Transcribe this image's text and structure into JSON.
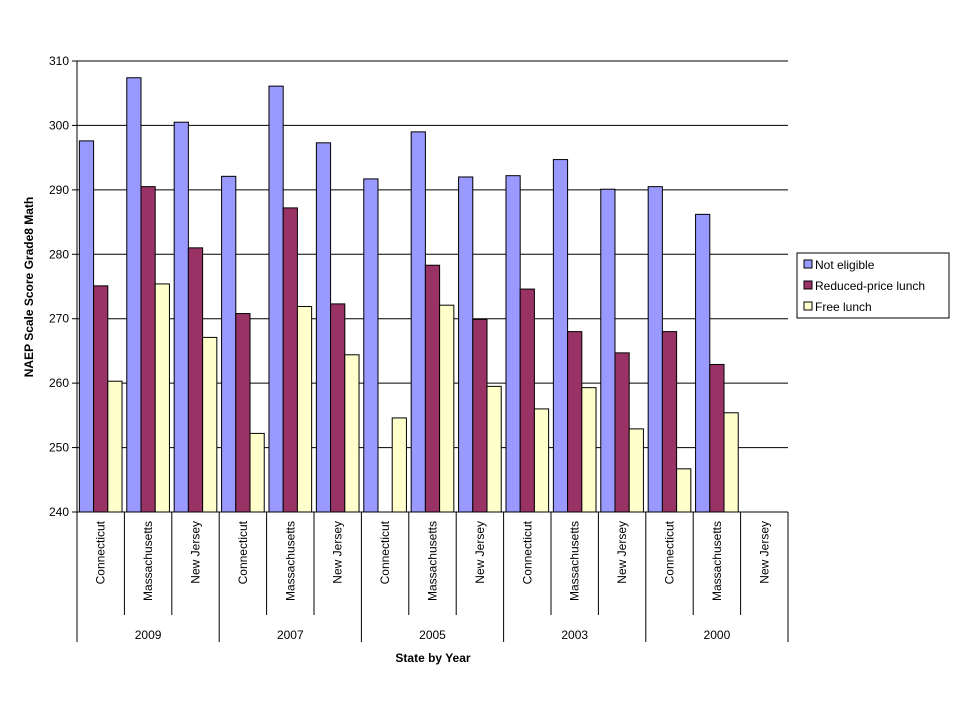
{
  "chart_data": {
    "type": "bar",
    "title": "",
    "xlabel": "State by Year",
    "ylabel": "NAEP Scale Score Grade8 Math",
    "ylim": [
      240,
      310
    ],
    "yticks": [
      240,
      250,
      260,
      270,
      280,
      290,
      300,
      310
    ],
    "grid": true,
    "legend_position": "right",
    "groups": [
      "2009",
      "2007",
      "2005",
      "2003",
      "2000"
    ],
    "categories": [
      "Connecticut",
      "Massachusetts",
      "New Jersey",
      "Connecticut",
      "Massachusetts",
      "New Jersey",
      "Connecticut",
      "Massachusetts",
      "New Jersey",
      "Connecticut",
      "Massachusetts",
      "New Jersey",
      "Connecticut",
      "Massachusetts",
      "New Jersey"
    ],
    "series": [
      {
        "name": "Not eligible",
        "color": "#9999ff",
        "values": [
          297.6,
          307.4,
          300.5,
          292.1,
          306.1,
          297.3,
          291.7,
          299.0,
          292.0,
          292.2,
          294.7,
          290.1,
          290.5,
          286.2,
          null
        ]
      },
      {
        "name": "Reduced-price lunch",
        "color": "#993366",
        "values": [
          275.1,
          290.5,
          281.0,
          270.8,
          287.2,
          272.3,
          null,
          278.3,
          269.9,
          274.6,
          268.0,
          264.7,
          268.0,
          262.9,
          null
        ]
      },
      {
        "name": "Free lunch",
        "color": "#ffffcc",
        "values": [
          260.3,
          275.4,
          267.1,
          252.2,
          271.9,
          264.4,
          254.6,
          272.1,
          259.5,
          256.0,
          259.3,
          252.9,
          246.7,
          255.4,
          null
        ]
      }
    ]
  }
}
